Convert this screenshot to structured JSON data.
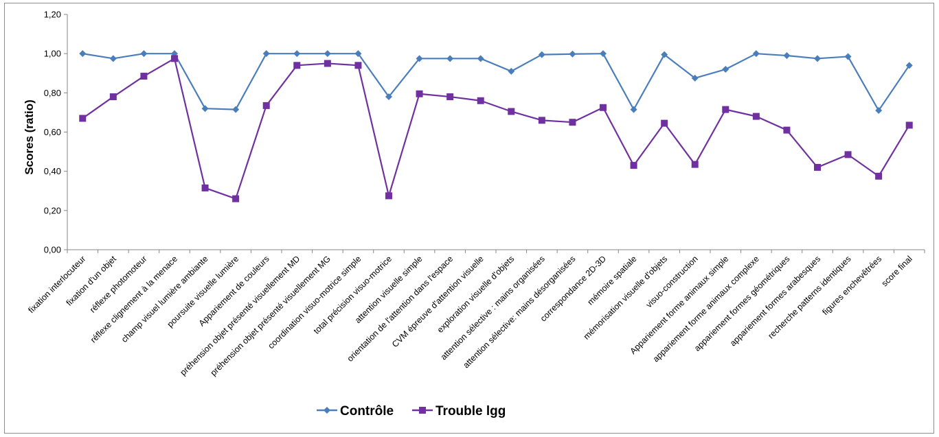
{
  "chart_data": {
    "type": "line",
    "title": "",
    "xlabel": "",
    "ylabel": "Scores (ratio)",
    "ylim": [
      0,
      1.2
    ],
    "yticks": [
      "0,00",
      "0,20",
      "0,40",
      "0,60",
      "0,80",
      "1,00",
      "1,20"
    ],
    "grid": false,
    "legend_position": "bottom",
    "categories": [
      "fixation interlocuteur",
      "fixation d'un objet",
      "réflexe photomoteur",
      "réflexe clignement à la menace",
      "champ visuel lumière ambiante",
      "poursuite visuelle lumière",
      "Appariement de couleurs",
      "préhension objet présenté visuellement MD",
      "préhension objet présenté visuellement MG",
      "coordination visuo-motrice simple",
      "total précision visuo-motrice",
      "attention visuelle simple",
      "orientation de l'attention dans l'espace",
      "CVM épreuve d'attention visuelle",
      "exploration visuelle d'objets",
      "attention sélective : mains organisées",
      "attention sélective: mains désorganisées",
      "correspondance 2D-3D",
      "mémoire spatiale",
      "mémorisation visuelle d'objets",
      "visuo-construction",
      "Appariement forme animaux simple",
      "appariement forme animaux complexe",
      "appariement formes géométriques",
      "appariement formes arabesques",
      "recherche patterns identiques",
      "figures enchevêtrées",
      "score final"
    ],
    "series": [
      {
        "name": "Contrôle",
        "color": "#4a7ebb",
        "marker": "diamond",
        "values": [
          1.0,
          0.975,
          1.0,
          1.0,
          0.72,
          0.715,
          1.0,
          1.0,
          1.0,
          1.0,
          0.78,
          0.975,
          0.975,
          0.975,
          0.91,
          0.995,
          0.998,
          1.0,
          0.715,
          0.995,
          0.875,
          0.92,
          1.0,
          0.99,
          0.975,
          0.985,
          0.71,
          0.94
        ]
      },
      {
        "name": "Trouble lgg",
        "color": "#7030a0",
        "marker": "square",
        "values": [
          0.67,
          0.78,
          0.885,
          0.975,
          0.315,
          0.26,
          0.735,
          0.94,
          0.95,
          0.94,
          0.275,
          0.795,
          0.78,
          0.76,
          0.705,
          0.66,
          0.65,
          0.725,
          0.43,
          0.645,
          0.435,
          0.715,
          0.68,
          0.61,
          0.42,
          0.485,
          0.375,
          0.635
        ]
      }
    ]
  }
}
